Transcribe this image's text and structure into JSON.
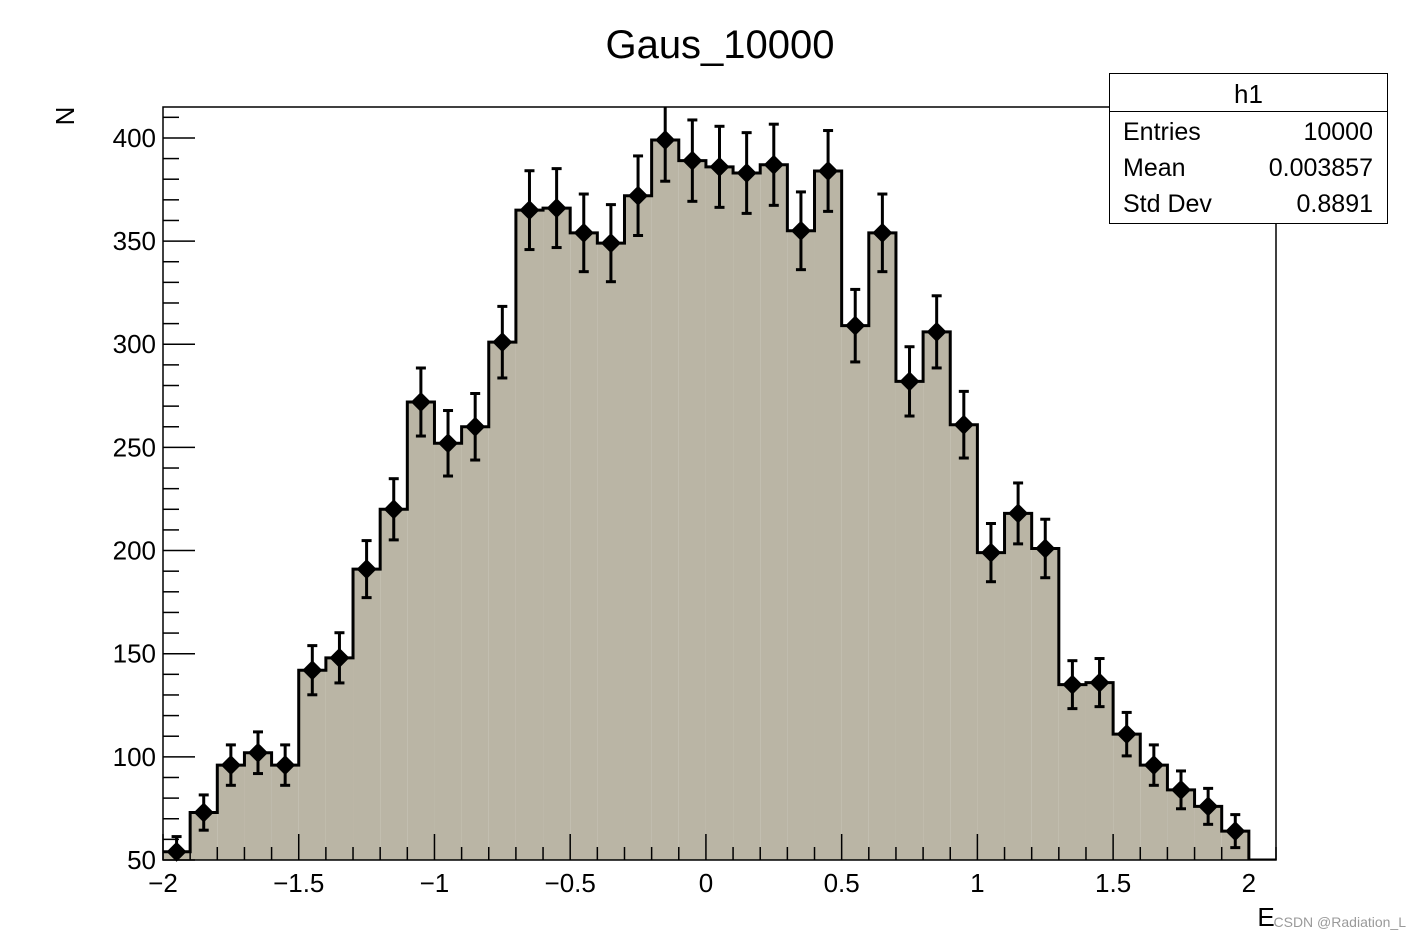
{
  "chart_data": {
    "type": "histogram",
    "title": "Gaus_10000",
    "xlabel": "E",
    "ylabel": "N",
    "xlim": [
      -2,
      2.1
    ],
    "ylim": [
      50,
      415
    ],
    "bin_width": 0.1,
    "bin_low_edges": [
      -2.0,
      -1.9,
      -1.8,
      -1.7,
      -1.6,
      -1.5,
      -1.4,
      -1.3,
      -1.2,
      -1.1,
      -1.0,
      -0.9,
      -0.8,
      -0.7,
      -0.6,
      -0.5,
      -0.4,
      -0.3,
      -0.2,
      -0.1,
      0.0,
      0.1,
      0.2,
      0.3,
      0.4,
      0.5,
      0.6,
      0.7,
      0.8,
      0.9,
      1.0,
      1.1,
      1.2,
      1.3,
      1.4,
      1.5,
      1.6,
      1.7,
      1.8,
      1.9,
      2.0
    ],
    "values": [
      54,
      73,
      96,
      102,
      96,
      142,
      148,
      191,
      220,
      272,
      252,
      260,
      301,
      365,
      366,
      354,
      349,
      372,
      399,
      389,
      386,
      383,
      387,
      355,
      384,
      309,
      354,
      282,
      306,
      261,
      199,
      218,
      201,
      135,
      136,
      111,
      96,
      84,
      76,
      64,
      49
    ],
    "x_ticks": [
      {
        "value": -2,
        "label": "−2"
      },
      {
        "value": -1.5,
        "label": "−1.5"
      },
      {
        "value": -1,
        "label": "−1"
      },
      {
        "value": -0.5,
        "label": "−0.5"
      },
      {
        "value": 0,
        "label": "0"
      },
      {
        "value": 0.5,
        "label": "0.5"
      },
      {
        "value": 1,
        "label": "1"
      },
      {
        "value": 1.5,
        "label": "1.5"
      },
      {
        "value": 2,
        "label": "2"
      }
    ],
    "y_ticks": [
      {
        "value": 50,
        "label": "50"
      },
      {
        "value": 100,
        "label": "100"
      },
      {
        "value": 150,
        "label": "150"
      },
      {
        "value": 200,
        "label": "200"
      },
      {
        "value": 250,
        "label": "250"
      },
      {
        "value": 300,
        "label": "300"
      },
      {
        "value": 350,
        "label": "350"
      },
      {
        "value": 400,
        "label": "400"
      }
    ],
    "fill_color": "#bab5a5",
    "line_color": "#000000",
    "error_bars": "sqrt(N)",
    "marker": "diamond",
    "grid": false
  },
  "stats_box": {
    "title": "h1",
    "rows": [
      {
        "label": "Entries",
        "value": "10000"
      },
      {
        "label": "Mean",
        "value": "0.003857"
      },
      {
        "label": "Std Dev",
        "value": "0.8891"
      }
    ],
    "placement": "top-right"
  },
  "watermark": "CSDN @Radiation_L"
}
